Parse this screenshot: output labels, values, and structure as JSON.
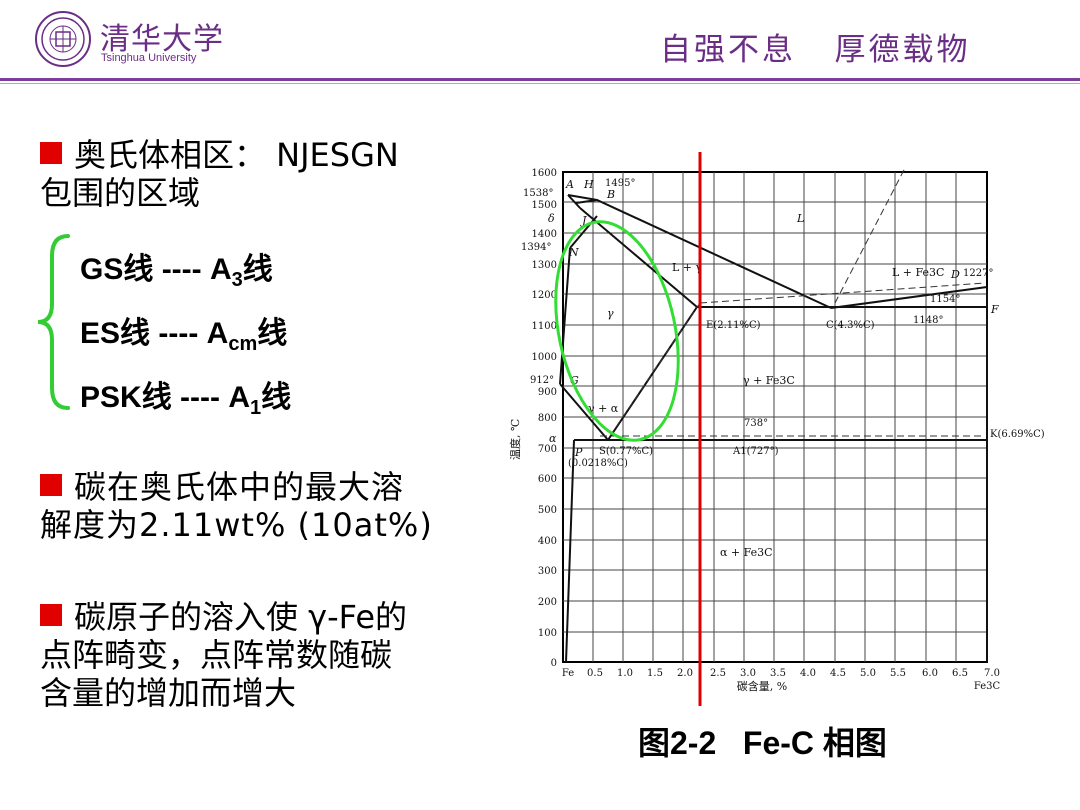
{
  "header": {
    "university_cn": "清华大学",
    "university_en": "Tsinghua University",
    "motto": "自强不息   厚德载物"
  },
  "colors": {
    "brand_purple": "#6b2e86",
    "bullet_red": "#e00000",
    "brace_green": "#33cc33",
    "circle_green": "#33dd33",
    "marker_red": "#e00000"
  },
  "bullets": [
    {
      "line1": "奥氏体相区： NJESGN",
      "line2": "包围的区域"
    },
    {
      "line1": "碳在奥氏体中的最大溶",
      "line2": "解度为2.11wt% (10at%)"
    },
    {
      "line1": "碳原子的溶入使 γ-Fe的",
      "line2": "点阵畸变，点阵常数随碳",
      "line3": "含量的增加而增大"
    }
  ],
  "lines": [
    {
      "pre": "GS",
      "cjk1": "线",
      "mid": " ---- A",
      "sub": "3",
      "cjk2": "线"
    },
    {
      "pre": "ES",
      "cjk1": "线",
      "mid": " ---- A",
      "sub": "cm",
      "cjk2": "线"
    },
    {
      "pre": "PSK",
      "cjk1": "线",
      "mid": " ---- A",
      "sub": "1",
      "cjk2": "线"
    }
  ],
  "diagram": {
    "y_ticks": [
      "1600",
      "1500",
      "1400",
      "1300",
      "1200",
      "1100",
      "1000",
      "900",
      "800",
      "700",
      "600",
      "500",
      "400",
      "300",
      "200",
      "100",
      "0"
    ],
    "x_ticks": [
      "Fe",
      "0.5",
      "1.0",
      "1.5",
      "2.0",
      "2.5",
      "3.0",
      "3.5",
      "4.0",
      "4.5",
      "5.0",
      "5.5",
      "6.0",
      "6.5",
      "7.0"
    ],
    "y_label": "温度, ℃",
    "x_label": "碳含量, %",
    "x_end_label": "Fe3C",
    "temps": {
      "t1538": "1538°",
      "t1495": "1495°",
      "t1394": "1394°",
      "t912": "912°",
      "t1227": "1227°",
      "t1154": "1154°",
      "t1148": "1148°",
      "t738": "738°"
    },
    "points": {
      "A": "A",
      "H": "H",
      "B": "B",
      "delta": "δ",
      "J": "J",
      "N": "N",
      "G": "G",
      "alpha": "α",
      "P": "P",
      "D": "D",
      "F": "F"
    },
    "regions": {
      "L": "L",
      "L_gamma": "L + γ",
      "L_Fe3C": "L + Fe3C",
      "gamma": "γ",
      "gamma_Fe3C": "γ + Fe3C",
      "gamma_alpha": "γ + α",
      "alpha_Fe3C": "α + Fe3C"
    },
    "annotations": {
      "E": "E(2.11%C)",
      "C": "C(4.3%C)",
      "S": "S(0.77%C)",
      "P_comp": "(0.0218%C)",
      "A1": "A1(727°)",
      "K": "K(6.69%C)"
    }
  },
  "caption": "图2-2   Fe-C 相图"
}
